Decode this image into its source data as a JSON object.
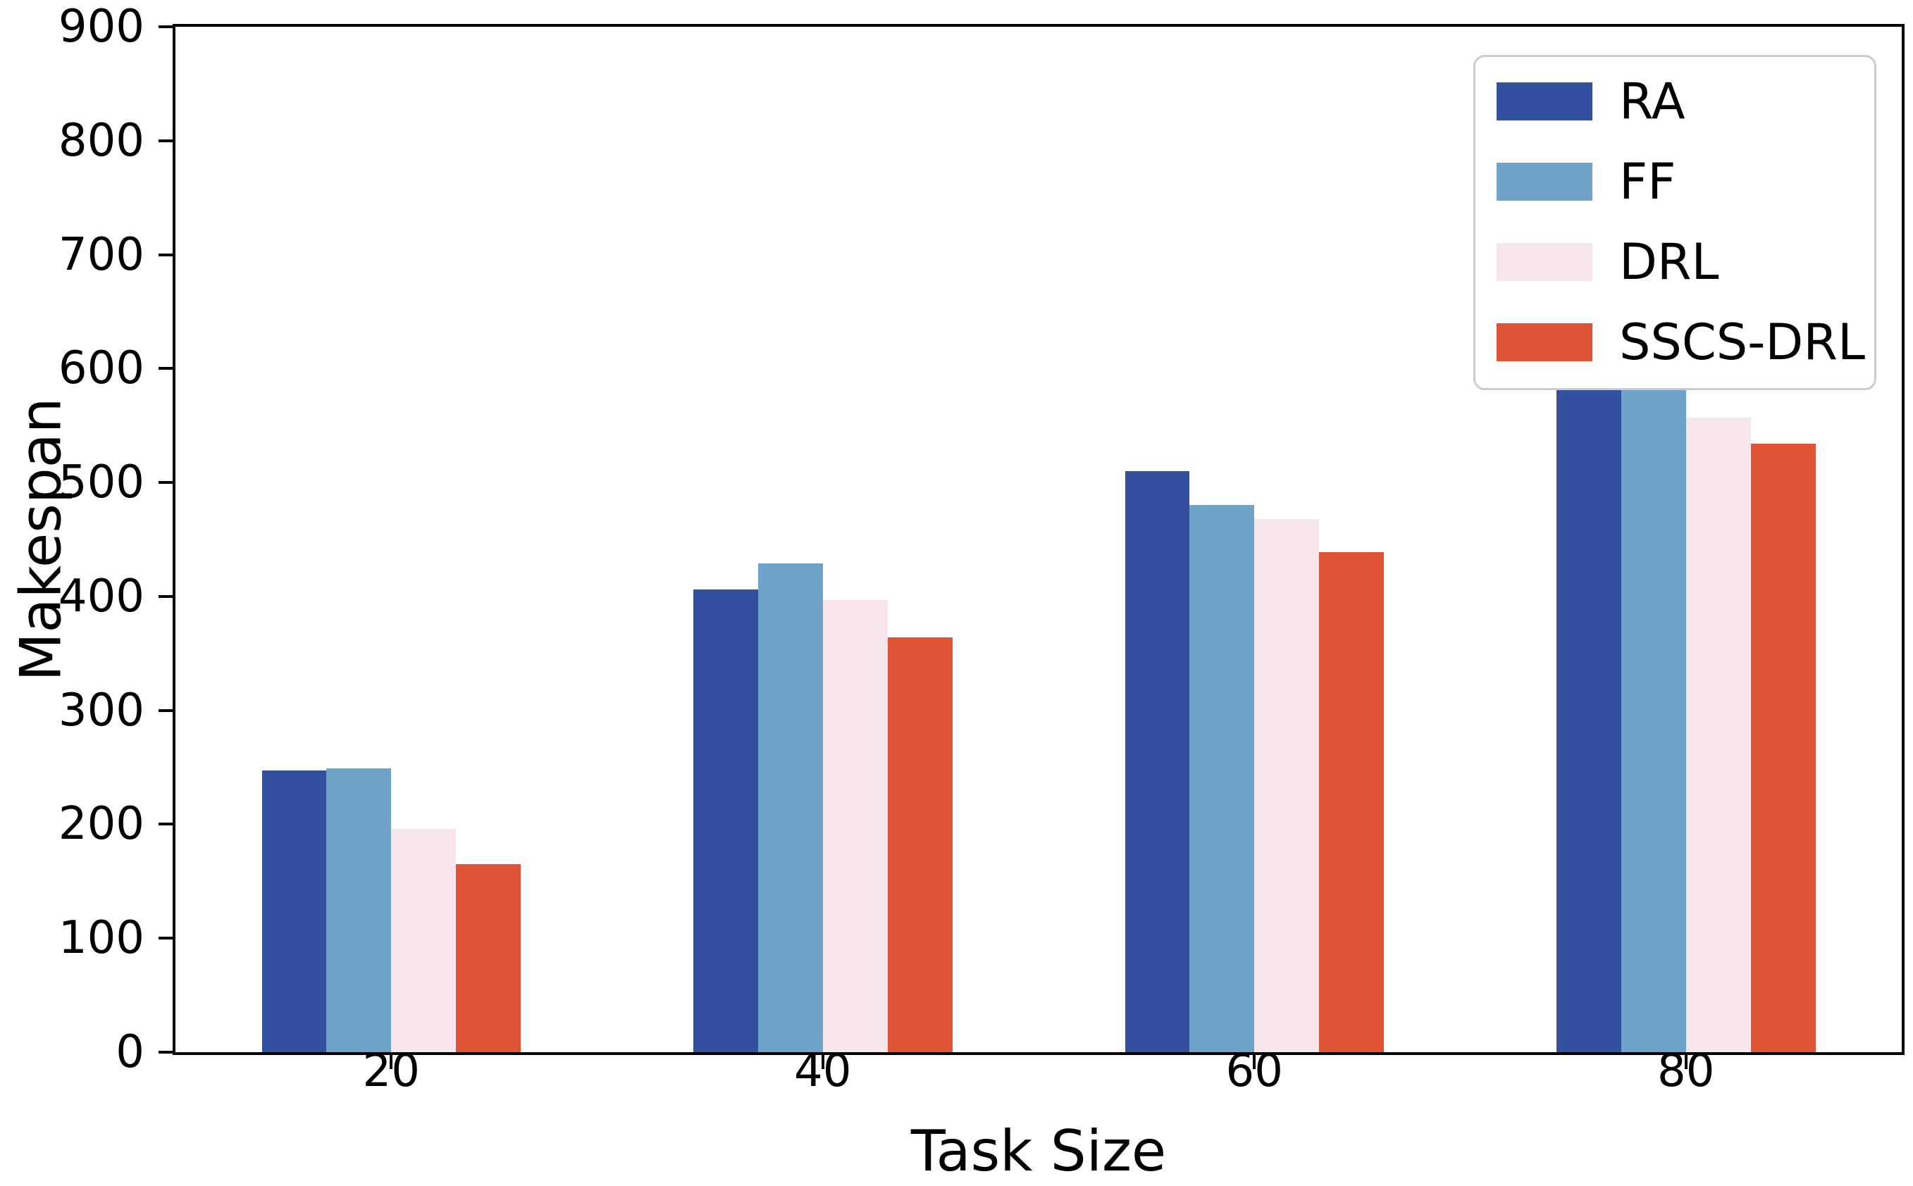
{
  "figure": {
    "background_color": "#ffffff",
    "axis_color": "#000000",
    "legend_border_color": "#cccccc"
  },
  "chart_data": {
    "type": "bar",
    "title": "",
    "xlabel": "Task Size",
    "ylabel": "Makespan",
    "categories": [
      "20",
      "40",
      "60",
      "80"
    ],
    "series": [
      {
        "name": "RA",
        "color": "#32509d",
        "values": [
          247,
          406,
          510,
          608
        ]
      },
      {
        "name": "FF",
        "color": "#6fa4c8",
        "values": [
          249,
          429,
          480,
          595
        ]
      },
      {
        "name": "DRL",
        "color": "#f8e6ee",
        "values": [
          196,
          397,
          468,
          557
        ]
      },
      {
        "name": "SSCS-DRL",
        "color": "#de5435",
        "values": [
          165,
          364,
          439,
          534
        ]
      }
    ],
    "ylim": [
      0,
      900
    ],
    "yticks": [
      0,
      100,
      200,
      300,
      400,
      500,
      600,
      700,
      800,
      900
    ],
    "grid": false,
    "legend_position": "upper right",
    "bar_width_fraction": 0.15
  }
}
